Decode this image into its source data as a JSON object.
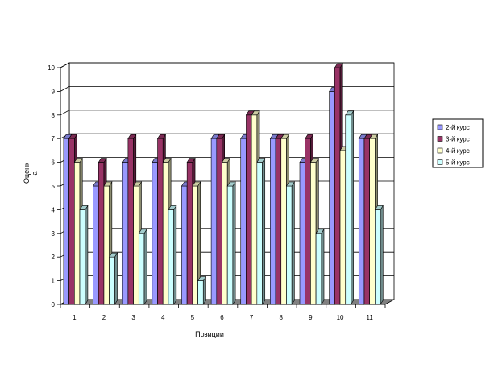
{
  "chart_data": {
    "type": "bar",
    "style": "3d-clustered-column",
    "title": "",
    "xlabel": "Позиции",
    "ylabel": "Оценк\nа",
    "ylim": [
      0,
      10
    ],
    "y_ticks": [
      0,
      1,
      2,
      3,
      4,
      5,
      6,
      7,
      8,
      9,
      10
    ],
    "grid": "horizontal",
    "legend_position": "right",
    "categories": [
      "1",
      "2",
      "3",
      "4",
      "5",
      "6",
      "7",
      "8",
      "9",
      "10",
      "11"
    ],
    "series": [
      {
        "name": "2-й курс",
        "color": "#9999ff",
        "values": [
          7,
          5,
          6,
          6,
          5,
          7,
          7,
          7,
          6,
          9,
          7
        ]
      },
      {
        "name": "3-й курс",
        "color": "#993366",
        "values": [
          7,
          6,
          7,
          7,
          6,
          7,
          8,
          7,
          7,
          10,
          7
        ]
      },
      {
        "name": "4-й курс",
        "color": "#ffffcc",
        "values": [
          6,
          5,
          5,
          6,
          5,
          6,
          8,
          7,
          6,
          6.5,
          7
        ]
      },
      {
        "name": "5-й курс",
        "color": "#ccffff",
        "values": [
          4,
          2,
          3,
          4,
          1,
          5,
          6,
          5,
          3,
          8,
          4
        ]
      }
    ]
  }
}
